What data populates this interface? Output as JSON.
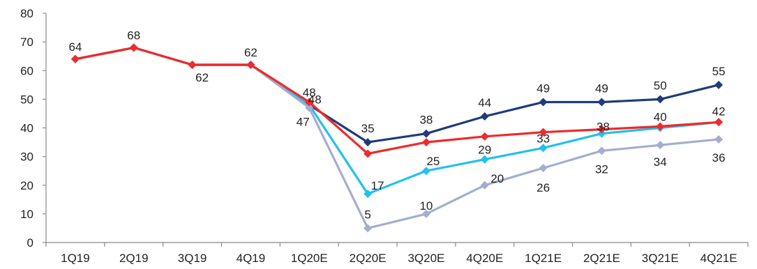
{
  "chart_data": {
    "type": "line",
    "categories": [
      "1Q19",
      "2Q19",
      "3Q19",
      "4Q19",
      "1Q20E",
      "2Q20E",
      "3Q20E",
      "4Q20E",
      "1Q21E",
      "2Q21E",
      "3Q21E",
      "4Q21E"
    ],
    "ylim": [
      0,
      80
    ],
    "yticks": [
      0,
      10,
      20,
      30,
      40,
      50,
      60,
      70,
      80
    ],
    "grid": false,
    "series": [
      {
        "color": "#1F3B7A",
        "values": [
          64,
          68,
          62,
          62,
          48,
          35,
          38,
          44,
          49,
          49,
          50,
          55
        ]
      },
      {
        "color": "#22C0EE",
        "values": [
          64,
          68,
          62,
          62,
          48,
          17,
          25,
          29,
          33,
          38,
          40,
          42
        ]
      },
      {
        "color": "#A3AECF",
        "values": [
          64,
          68,
          62,
          62,
          47,
          5,
          10,
          20,
          26,
          32,
          34,
          36
        ]
      },
      {
        "color": "#EE2A2A",
        "values": [
          64,
          68,
          62,
          62,
          49,
          31,
          35,
          37,
          38.5,
          39.5,
          40.5,
          42
        ]
      }
    ],
    "data_labels": [
      {
        "series": 0,
        "index": 0,
        "text": "64"
      },
      {
        "series": 0,
        "index": 1,
        "text": "68"
      },
      {
        "series": 0,
        "index": 2,
        "text": "62"
      },
      {
        "series": 0,
        "index": 3,
        "text": "62"
      },
      {
        "series": 0,
        "index": 4,
        "text": "48"
      },
      {
        "series": 0,
        "index": 5,
        "text": "35"
      },
      {
        "series": 0,
        "index": 6,
        "text": "38"
      },
      {
        "series": 0,
        "index": 7,
        "text": "44"
      },
      {
        "series": 0,
        "index": 8,
        "text": "49"
      },
      {
        "series": 0,
        "index": 9,
        "text": "49"
      },
      {
        "series": 0,
        "index": 10,
        "text": "50"
      },
      {
        "series": 0,
        "index": 11,
        "text": "55"
      },
      {
        "series": 1,
        "index": 4,
        "text": "48"
      },
      {
        "series": 1,
        "index": 5,
        "text": "17"
      },
      {
        "series": 1,
        "index": 6,
        "text": "25"
      },
      {
        "series": 1,
        "index": 7,
        "text": "29"
      },
      {
        "series": 1,
        "index": 8,
        "text": "33"
      },
      {
        "series": 1,
        "index": 9,
        "text": "38"
      },
      {
        "series": 1,
        "index": 10,
        "text": "40"
      },
      {
        "series": 1,
        "index": 11,
        "text": "42"
      },
      {
        "series": 2,
        "index": 4,
        "text": "47"
      },
      {
        "series": 2,
        "index": 5,
        "text": "5"
      },
      {
        "series": 2,
        "index": 6,
        "text": "10"
      },
      {
        "series": 2,
        "index": 7,
        "text": "20"
      },
      {
        "series": 2,
        "index": 8,
        "text": "26"
      },
      {
        "series": 2,
        "index": 9,
        "text": "32"
      },
      {
        "series": 2,
        "index": 10,
        "text": "34"
      },
      {
        "series": 2,
        "index": 11,
        "text": "36"
      }
    ]
  }
}
